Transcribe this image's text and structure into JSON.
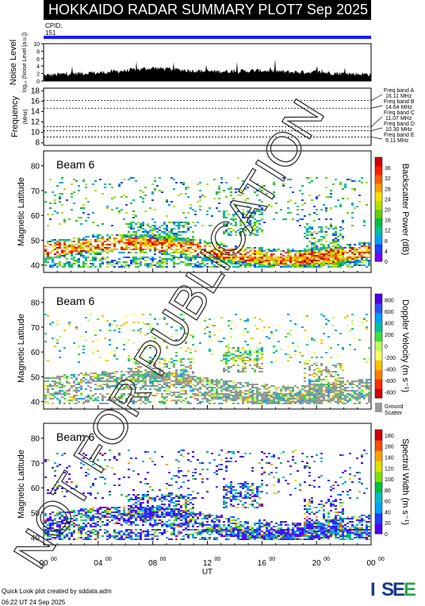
{
  "header": {
    "title": "HOKKAIDO RADAR SUMMARY PLOT",
    "date": "7 Sep 2025"
  },
  "cpid": {
    "label": "CPID:",
    "value": "151"
  },
  "footer": {
    "line1": "Quick Look plot created by sddata.adm",
    "line2": "06:22 UT 24 Sep 2025"
  },
  "logo": {
    "text": "ISEE",
    "colors": [
      "#1a3a8a",
      "#2aa84a"
    ]
  },
  "watermark": "NOT FOR PUBLICATION",
  "colors": {
    "ground_scatter": "#999999",
    "cpid_bar": "#1a1aff"
  },
  "chart_data": [
    {
      "type": "area",
      "name": "noise",
      "ylabel": "Noise Level",
      "ylabel_sub": "log₁₀ (Noise Level [a.u.])",
      "yticks": [
        0,
        2,
        4,
        6,
        8,
        10
      ],
      "ylim": [
        0,
        10
      ],
      "x": [
        0,
        2,
        4,
        6,
        8,
        10,
        12,
        14,
        16,
        18,
        20,
        22,
        24
      ],
      "values": [
        1.5,
        2.0,
        2.2,
        2.8,
        3.5,
        3.0,
        2.6,
        2.6,
        2.8,
        2.4,
        2.4,
        2.0,
        1.8
      ]
    },
    {
      "type": "line",
      "name": "frequency",
      "ylabel": "Frequency",
      "yunit": "(MHz)",
      "yticks": [
        8,
        10,
        12,
        14,
        16,
        18
      ],
      "ylim": [
        7.5,
        18.5
      ],
      "bands": [
        {
          "label": "Freq band A",
          "value": "16.11 MHz",
          "f": 16.11
        },
        {
          "label": "Freq band B",
          "value": "14.64 MHz",
          "f": 14.64
        },
        {
          "label": "Freq band C",
          "value": "11.07 MHz",
          "f": 11.07
        },
        {
          "label": "Freq band D",
          "value": "10.30 MHz",
          "f": 10.3
        },
        {
          "label": "Freq band E",
          "value": "9.11 MHz",
          "f": 9.11
        }
      ]
    },
    {
      "type": "heatmap",
      "name": "power",
      "beam_label": "Beam  6",
      "ylabel": "Magnetic Latitude",
      "yticks": [
        40,
        50,
        60,
        70,
        80
      ],
      "ylim": [
        37,
        86
      ],
      "colorbar_label": "Backscatter Power (dB)",
      "colorbar_ticks": [
        0,
        4,
        8,
        12,
        16,
        20,
        24,
        28,
        32,
        36
      ],
      "colorbar_range": [
        0,
        40
      ],
      "colors": [
        "#7a00ff",
        "#2040ff",
        "#00a0ff",
        "#00c0a0",
        "#00c040",
        "#60d000",
        "#b0e000",
        "#ffe000",
        "#ffa000",
        "#ff6000",
        "#ff2000",
        "#d00000"
      ]
    },
    {
      "type": "heatmap",
      "name": "velocity",
      "beam_label": "Beam  6",
      "ylabel": "Magnetic Latitude",
      "yticks": [
        40,
        50,
        60,
        70,
        80
      ],
      "ylim": [
        37,
        86
      ],
      "colorbar_label": "Doppler Velocity (m s⁻¹)",
      "colorbar_ticks": [
        -800,
        -600,
        -400,
        -200,
        0,
        200,
        400,
        600,
        800
      ],
      "colorbar_range": [
        -900,
        900
      ],
      "colors": [
        "#d00000",
        "#ff3000",
        "#ff8000",
        "#ffc000",
        "#ffff60",
        "#c0ff60",
        "#40e040",
        "#00c0a0",
        "#00a0ff",
        "#3050ff",
        "#5000e0"
      ],
      "ground_scatter_label": "Ground",
      "ground_scatter_label2": "Scatter"
    },
    {
      "type": "heatmap",
      "name": "width",
      "beam_label": "Beam  6",
      "ylabel": "Magnetic Latitude",
      "yticks": [
        40,
        50,
        60,
        70,
        80
      ],
      "ylim": [
        37,
        86
      ],
      "colorbar_label": "Spectral Width (m s⁻¹)",
      "colorbar_ticks": [
        0,
        20,
        40,
        60,
        80,
        100,
        120,
        140,
        160,
        180
      ],
      "colorbar_range": [
        0,
        190
      ],
      "colors": [
        "#5000ff",
        "#2040ff",
        "#00a0ff",
        "#00c0c0",
        "#00c040",
        "#80e000",
        "#e0e000",
        "#ffa000",
        "#ff5000",
        "#d00000"
      ],
      "xlabel": "UT",
      "xticks": [
        "00",
        "04",
        "08",
        "12",
        "16",
        "20",
        "00"
      ],
      "xtick_sup": "00",
      "xlim": [
        0,
        24
      ]
    }
  ]
}
